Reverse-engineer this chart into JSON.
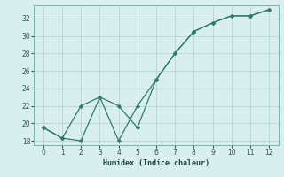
{
  "xlabel": "Humidex (Indice chaleur)",
  "x": [
    0,
    1,
    2,
    3,
    4,
    5,
    6,
    7,
    8,
    9,
    10,
    11,
    12
  ],
  "line1": [
    19.5,
    18.3,
    18.0,
    23.0,
    22.0,
    19.5,
    25.0,
    28.0,
    30.5,
    31.5,
    32.3,
    32.3,
    33.0
  ],
  "line2": [
    19.5,
    18.3,
    22.0,
    23.0,
    18.0,
    22.0,
    25.0,
    28.0,
    30.5,
    31.5,
    32.3,
    32.3,
    33.0
  ],
  "color": "#2e7b6e",
  "bg_color": "#d9eeee",
  "grid_color": "#b8d4d4",
  "ylim": [
    17.5,
    33.5
  ],
  "xlim": [
    -0.5,
    12.5
  ],
  "yticks": [
    18,
    20,
    22,
    24,
    26,
    28,
    30,
    32
  ],
  "xticks": [
    0,
    1,
    2,
    3,
    4,
    5,
    6,
    7,
    8,
    9,
    10,
    11,
    12
  ]
}
